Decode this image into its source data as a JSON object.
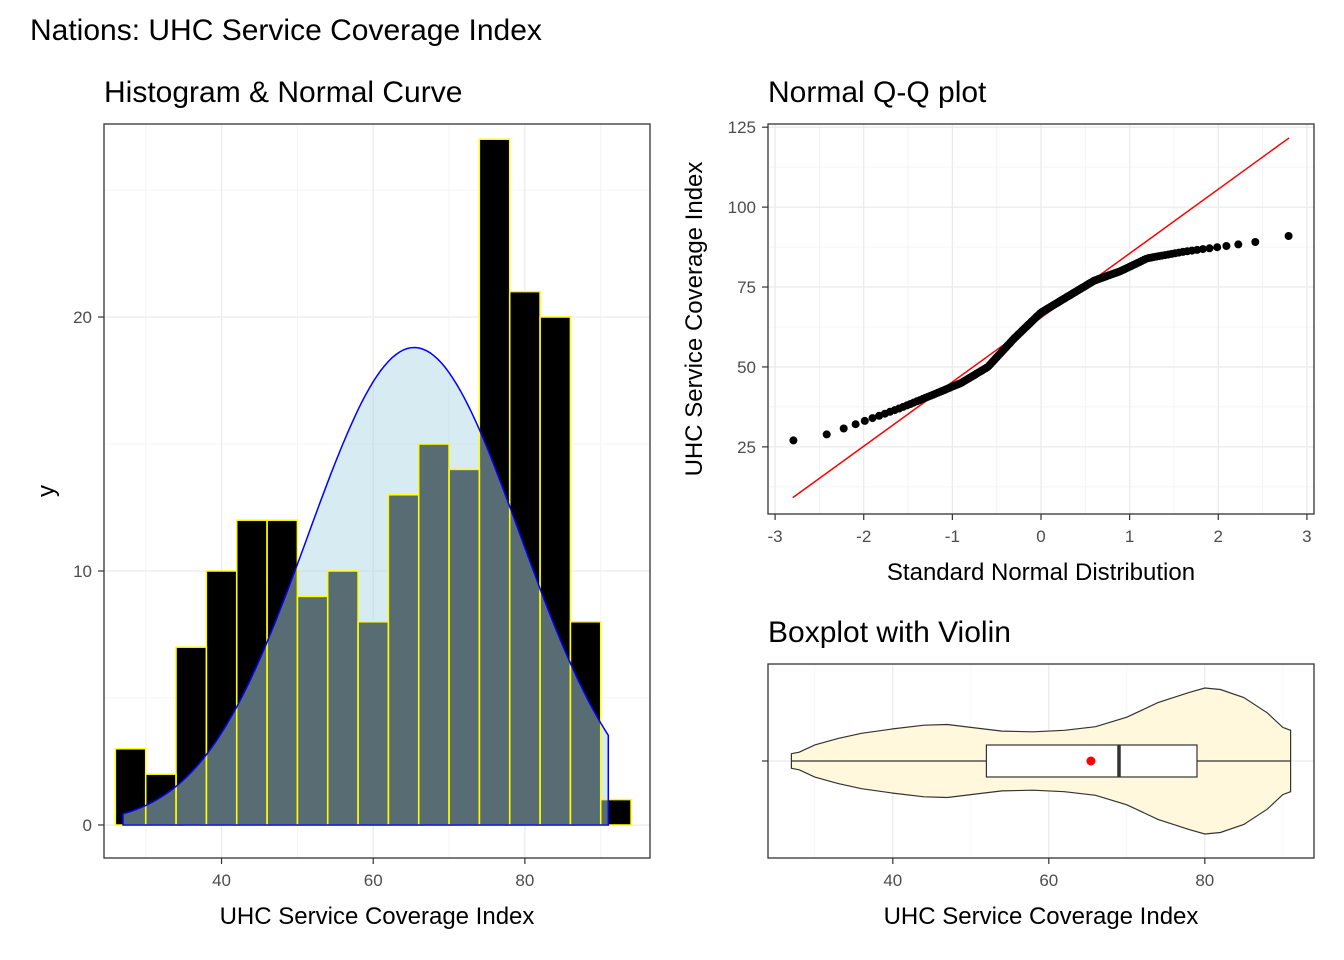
{
  "figure": {
    "title": "Nations: UHC Service Coverage Index"
  },
  "chart_data": [
    {
      "type": "bar",
      "title": "Histogram & Normal Curve",
      "xlabel": "UHC Service Coverage Index",
      "ylabel": "y",
      "xlim": [
        24.5,
        96.5
      ],
      "ylim": [
        -1.3,
        27.6
      ],
      "x_ticks": [
        40,
        60,
        80
      ],
      "y_ticks": [
        0,
        10,
        20
      ],
      "bin_width": 4,
      "bin_centers": [
        28,
        32,
        36,
        40,
        44,
        48,
        52,
        56,
        60,
        64,
        68,
        72,
        76,
        80,
        84,
        88,
        92
      ],
      "values": [
        3,
        2,
        7,
        10,
        12,
        12,
        9,
        10,
        8,
        13,
        15,
        14,
        27,
        21,
        20,
        8,
        1
      ],
      "bar_fill": "#000000",
      "bar_outline": "#ffff00",
      "normal_curve": {
        "mean": 65.4,
        "sd": 14.0,
        "x_range": [
          27,
          91
        ],
        "peak": 18.8,
        "line_color": "#0000ff",
        "fill_color": "#add8e6"
      },
      "grid": true
    },
    {
      "type": "scatter",
      "title": "Normal Q-Q plot",
      "xlabel": "Standard Normal Distribution",
      "ylabel": "UHC Service Coverage Index",
      "xlim": [
        -3.08,
        3.08
      ],
      "ylim": [
        4,
        126
      ],
      "x_ticks": [
        -3,
        -2,
        -1,
        0,
        1,
        2,
        3
      ],
      "y_ticks": [
        25,
        50,
        75,
        100,
        125
      ],
      "n": 192,
      "sample_min": 27,
      "sample_max": 91,
      "reference_line": {
        "intercept": 65.4,
        "slope": 20.1,
        "x_range": [
          -2.8,
          2.8
        ],
        "color": "#ff0000"
      },
      "point_color": "#000000",
      "grid": true
    },
    {
      "type": "boxplot",
      "title": "Boxplot with Violin",
      "xlabel": "UHC Service Coverage Index",
      "ylabel": "",
      "xlim": [
        24,
        94
      ],
      "x_ticks": [
        40,
        60,
        80
      ],
      "min": 27,
      "q1": 52,
      "median": 69,
      "q3": 79,
      "max": 91,
      "mean": 65.4,
      "mean_color": "#ff0000",
      "violin_fill": "#fff8dc",
      "violin_half_width": [
        [
          27,
          0.1
        ],
        [
          28,
          0.12
        ],
        [
          30,
          0.22
        ],
        [
          33,
          0.31
        ],
        [
          36,
          0.38
        ],
        [
          40,
          0.44
        ],
        [
          44,
          0.49
        ],
        [
          47,
          0.5
        ],
        [
          50,
          0.46
        ],
        [
          54,
          0.41
        ],
        [
          58,
          0.4
        ],
        [
          62,
          0.42
        ],
        [
          66,
          0.47
        ],
        [
          70,
          0.6
        ],
        [
          74,
          0.8
        ],
        [
          78,
          0.94
        ],
        [
          80,
          1.0
        ],
        [
          82,
          0.98
        ],
        [
          85,
          0.87
        ],
        [
          88,
          0.66
        ],
        [
          90,
          0.46
        ],
        [
          91,
          0.42
        ]
      ],
      "grid": true
    }
  ]
}
